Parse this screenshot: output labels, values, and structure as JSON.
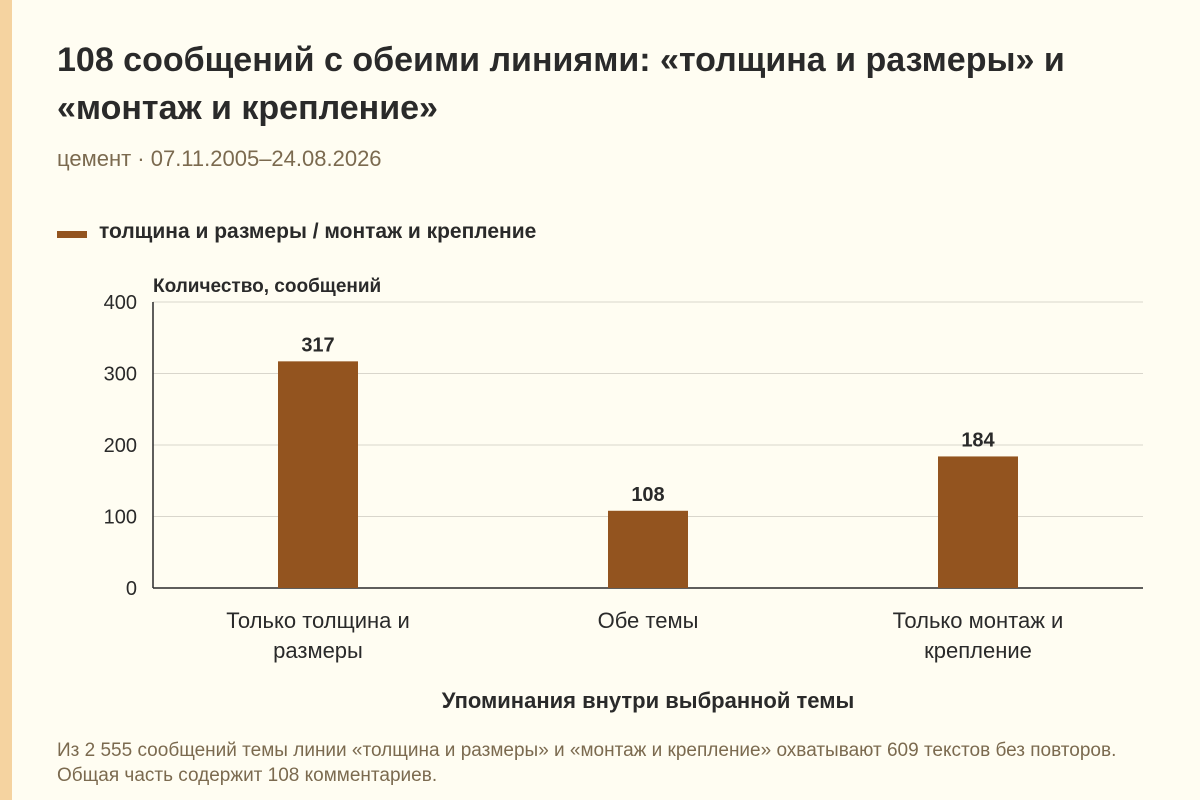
{
  "title": "108 сообщений с обеими линиями: «толщина и размеры» и «монтаж и крепление»",
  "subtitle": "цемент · 07.11.2005–24.08.2026",
  "legend": {
    "label": "толщина и размеры / монтаж и крепление",
    "color": "#93541f"
  },
  "chart_data": {
    "type": "bar",
    "categories": [
      [
        "Только толщина и",
        "размеры"
      ],
      [
        "Обе темы"
      ],
      [
        "Только монтаж и",
        "крепление"
      ]
    ],
    "series": [
      {
        "name": "толщина и размеры / монтаж и крепление",
        "values": [
          317,
          108,
          184
        ]
      }
    ],
    "data_labels": [
      "317",
      "108",
      "184"
    ],
    "ylabel": "Количество, сообщений",
    "xlabel": "Упоминания внутри выбранной темы",
    "ylim": [
      0,
      400
    ],
    "yticks": [
      0,
      100,
      200,
      300,
      400
    ],
    "grid": true,
    "bar_color": "#93541f"
  },
  "note": "Из 2 555 сообщений темы линии «толщина и размеры» и «монтаж и крепление» охватывают 609 текстов без повторов. Общая часть содержит 108 комментариев."
}
